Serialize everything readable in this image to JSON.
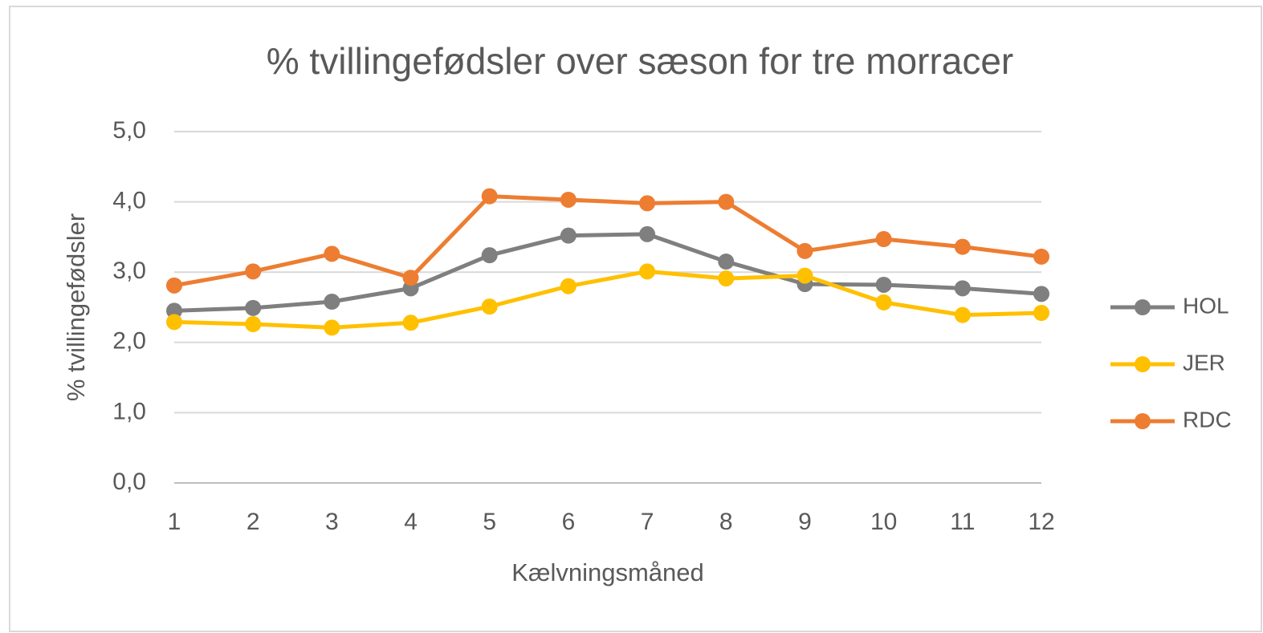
{
  "chart_data": {
    "type": "line",
    "title": "% tvillingefødsler over sæson for tre morracer",
    "x_label": "Kælvningsmåned",
    "y_label": "% tvillingefødsler",
    "x": [
      1,
      2,
      3,
      4,
      5,
      6,
      7,
      8,
      9,
      10,
      11,
      12
    ],
    "xlim": [
      1,
      12
    ],
    "xticks": [
      1,
      2,
      3,
      4,
      5,
      6,
      7,
      8,
      9,
      10,
      11,
      12
    ],
    "ylim": [
      0,
      5
    ],
    "yticks": [
      {
        "value": 0,
        "label": "0,0"
      },
      {
        "value": 1,
        "label": "1,0"
      },
      {
        "value": 2,
        "label": "2,0"
      },
      {
        "value": 3,
        "label": "3,0"
      },
      {
        "value": 4,
        "label": "4,0"
      },
      {
        "value": 5,
        "label": "5,0"
      }
    ],
    "grid": true,
    "legend": "right",
    "series": [
      {
        "name": "HOL",
        "color": "#7f7f7f",
        "values": [
          2.45,
          2.49,
          2.58,
          2.77,
          3.24,
          3.52,
          3.54,
          3.15,
          2.83,
          2.82,
          2.77,
          2.69
        ]
      },
      {
        "name": "JER",
        "color": "#ffc000",
        "values": [
          2.29,
          2.26,
          2.21,
          2.28,
          2.51,
          2.8,
          3.01,
          2.91,
          2.95,
          2.57,
          2.39,
          2.42
        ]
      },
      {
        "name": "RDC",
        "color": "#ed7d31",
        "values": [
          2.81,
          3.01,
          3.26,
          2.92,
          4.08,
          4.03,
          3.98,
          4.0,
          3.3,
          3.47,
          3.36,
          3.22
        ]
      }
    ]
  }
}
